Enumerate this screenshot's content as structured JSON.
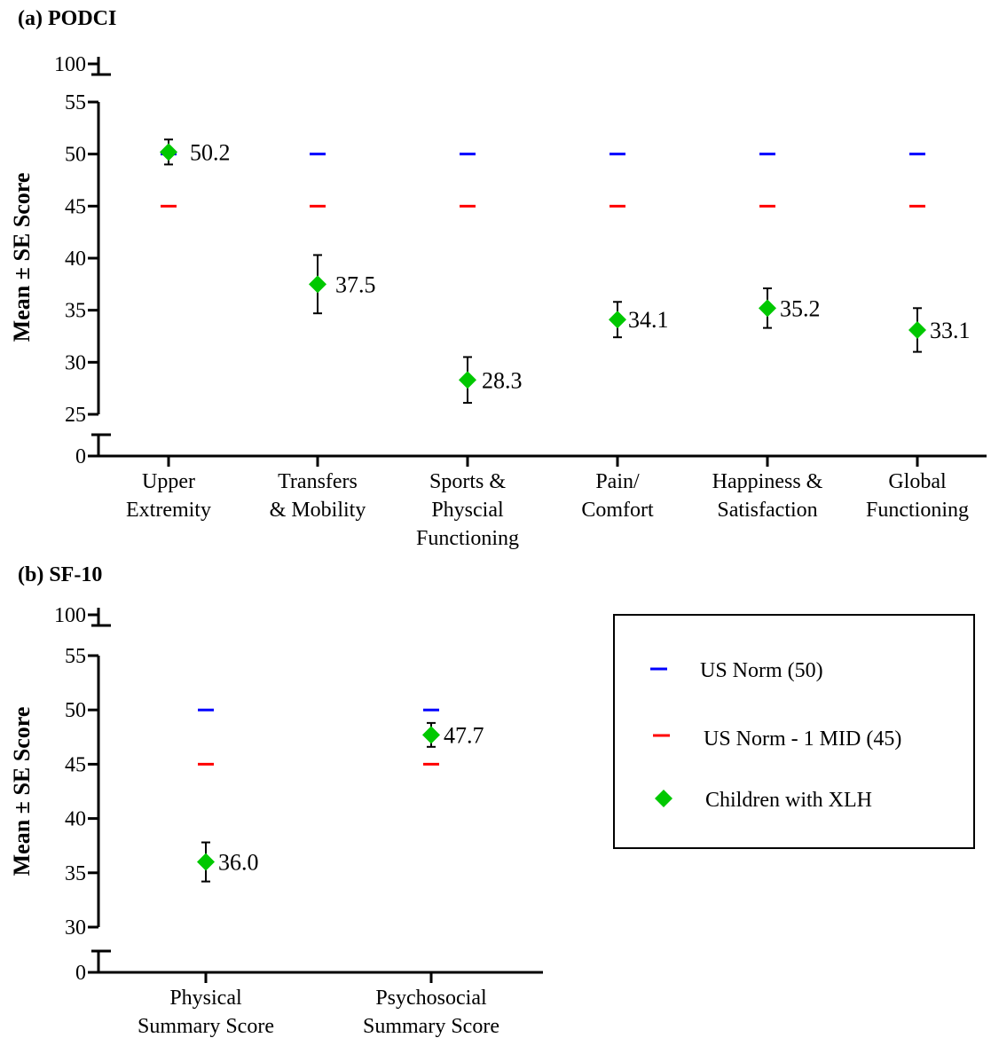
{
  "chart_data": [
    {
      "type": "scatter",
      "panel_title": "(a) PODCI",
      "ylabel": "Mean ± SE Score",
      "y_ticks": [
        "100",
        "55",
        "50",
        "45",
        "40",
        "35",
        "30",
        "25",
        "0"
      ],
      "y_axis": {
        "broken": true,
        "lower_segment": [
          25,
          55
        ],
        "upper_tick": 100,
        "bottom_tick": 0
      },
      "categories": [
        {
          "lines": [
            "Upper",
            "Extremity"
          ]
        },
        {
          "lines": [
            "Transfers",
            "& Mobility"
          ]
        },
        {
          "lines": [
            "Sports &",
            "Physcial",
            "Functioning"
          ]
        },
        {
          "lines": [
            "Pain/",
            "Comfort"
          ]
        },
        {
          "lines": [
            "Happiness &",
            "Satisfaction"
          ]
        },
        {
          "lines": [
            "Global",
            "Functioning"
          ]
        }
      ],
      "series": [
        {
          "name": "Children with XLH",
          "color": "#00c800",
          "values": [
            50.2,
            37.5,
            28.3,
            34.1,
            35.2,
            33.1
          ],
          "labels": [
            "50.2",
            "37.5",
            "28.3",
            "34.1",
            "35.2",
            "33.1"
          ],
          "se": [
            1.2,
            2.8,
            2.2,
            1.7,
            1.9,
            2.1
          ]
        },
        {
          "name": "US Norm (50)",
          "color": "#0000ff",
          "values": [
            50,
            50,
            50,
            50,
            50,
            50
          ]
        },
        {
          "name": "US Norm - 1 MID (45)",
          "color": "#ff0000",
          "values": [
            45,
            45,
            45,
            45,
            45,
            45
          ]
        }
      ]
    },
    {
      "type": "scatter",
      "panel_title": "(b) SF-10",
      "ylabel": "Mean ± SE Score",
      "y_ticks": [
        "100",
        "55",
        "50",
        "45",
        "40",
        "35",
        "30",
        "0"
      ],
      "y_axis": {
        "broken": true,
        "lower_segment": [
          30,
          55
        ],
        "upper_tick": 100,
        "bottom_tick": 0
      },
      "categories": [
        {
          "lines": [
            "Physical",
            "Summary Score"
          ]
        },
        {
          "lines": [
            "Psychosocial",
            "Summary Score"
          ]
        }
      ],
      "series": [
        {
          "name": "Children with XLH",
          "color": "#00c800",
          "values": [
            36.0,
            47.7
          ],
          "labels": [
            "36.0",
            "47.7"
          ],
          "se": [
            1.8,
            1.1
          ]
        },
        {
          "name": "US Norm (50)",
          "color": "#0000ff",
          "values": [
            50,
            50
          ]
        },
        {
          "name": "US Norm - 1 MID (45)",
          "color": "#ff0000",
          "values": [
            45,
            45
          ]
        }
      ]
    }
  ],
  "legend": {
    "placement": "right of panel b",
    "items": [
      {
        "label": "US Norm (50)",
        "color": "#0000ff",
        "marker": "dash"
      },
      {
        "label": "US Norm - 1 MID (45)",
        "color": "#ff0000",
        "marker": "dash"
      },
      {
        "label": "Children with XLH",
        "color": "#00c800",
        "marker": "diamond"
      }
    ]
  }
}
